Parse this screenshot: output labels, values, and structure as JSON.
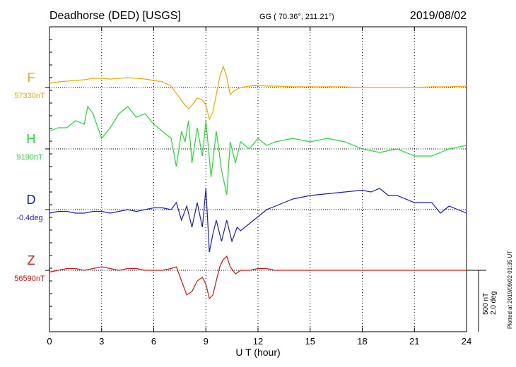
{
  "header": {
    "station": "Deadhorse (DED)  [USGS]",
    "coords": "GG ( 70.36°, 211.21°)",
    "date": "2019/08/02"
  },
  "footer": {
    "plotted": "Plotted at 2019/09/02 01:35 UT"
  },
  "scale": {
    "nt": "500 nT",
    "deg": "2.0 deg"
  },
  "chart_data": {
    "type": "line",
    "xlabel": "U T (hour)",
    "xlim": [
      0,
      24
    ],
    "xticks": [
      0,
      3,
      6,
      9,
      12,
      15,
      18,
      21,
      24
    ],
    "grid": true,
    "series": [
      {
        "name": "F",
        "baseline_label": "57330nT",
        "color": "#f0a800",
        "x": [
          0,
          0.5,
          1,
          1.5,
          2,
          2.5,
          3,
          3.5,
          4,
          4.5,
          5,
          5.5,
          6,
          6.5,
          7,
          7.2,
          7.5,
          7.8,
          8,
          8.2,
          8.5,
          8.8,
          9,
          9.2,
          9.4,
          9.6,
          9.8,
          10,
          10.2,
          10.4,
          10.6,
          11,
          11.5,
          12,
          12.5,
          13,
          14,
          15,
          16,
          17,
          18,
          19,
          20,
          21,
          22,
          23,
          24
        ],
        "values": [
          0.012,
          0.016,
          0.018,
          0.02,
          0.022,
          0.026,
          0.026,
          0.024,
          0.026,
          0.028,
          0.026,
          0.024,
          0.02,
          0.016,
          0.004,
          -0.01,
          -0.03,
          -0.05,
          -0.06,
          -0.05,
          -0.03,
          -0.035,
          -0.05,
          -0.09,
          -0.07,
          -0.02,
          0.03,
          0.06,
          0.03,
          -0.02,
          -0.01,
          0.0,
          0.004,
          0.006,
          0.004,
          0.004,
          0.002,
          0.002,
          0.002,
          0.002,
          0.0,
          0.0,
          0.0,
          0.0,
          0.002,
          0.002,
          0.004
        ]
      },
      {
        "name": "H",
        "baseline_label": "9190nT",
        "color": "#22dd33",
        "x": [
          0,
          0.5,
          1,
          1.5,
          2,
          2.2,
          2.5,
          3,
          3.5,
          4,
          4.5,
          5,
          5.5,
          6,
          6.5,
          7,
          7.3,
          7.6,
          7.8,
          8,
          8.2,
          8.5,
          8.8,
          9,
          9.3,
          9.6,
          9.9,
          10.2,
          10.4,
          10.7,
          11,
          11.5,
          12,
          12.5,
          13,
          14,
          15,
          16,
          17,
          18,
          19,
          20,
          21,
          22,
          23,
          24
        ],
        "values": [
          0.05,
          0.06,
          0.06,
          0.08,
          0.07,
          0.12,
          0.1,
          0.03,
          0.06,
          0.1,
          0.12,
          0.09,
          0.1,
          0.07,
          0.05,
          0.03,
          -0.05,
          0.05,
          0.02,
          0.08,
          -0.04,
          0.06,
          -0.02,
          0.08,
          -0.08,
          0.05,
          -0.06,
          -0.13,
          0.02,
          -0.04,
          0.02,
          0.0,
          0.03,
          0.01,
          0.02,
          0.03,
          0.02,
          0.03,
          0.02,
          0.0,
          -0.01,
          0.0,
          -0.02,
          -0.02,
          0.0,
          0.01
        ]
      },
      {
        "name": "D",
        "baseline_label": "-0.4deg",
        "color": "#1a1acc",
        "x": [
          0,
          0.5,
          1,
          1.5,
          2,
          2.5,
          3,
          3.5,
          4,
          4.5,
          5,
          5.5,
          6,
          6.5,
          7,
          7.3,
          7.6,
          7.9,
          8.2,
          8.5,
          8.8,
          9,
          9.2,
          9.4,
          9.6,
          9.9,
          10.2,
          10.5,
          10.8,
          11,
          11.5,
          12,
          12.5,
          13,
          13.5,
          14,
          15,
          16,
          17,
          18,
          18.5,
          19,
          19.5,
          20,
          21,
          22,
          22.5,
          23,
          23.5,
          24
        ],
        "values": [
          -0.01,
          -0.005,
          -0.005,
          -0.01,
          -0.01,
          -0.005,
          -0.005,
          -0.01,
          -0.005,
          -0.0,
          -0.005,
          0.0,
          0.005,
          0.005,
          0.0,
          0.02,
          -0.03,
          0.01,
          -0.05,
          0.02,
          -0.05,
          0.06,
          -0.12,
          -0.07,
          -0.03,
          -0.09,
          -0.03,
          -0.09,
          -0.05,
          -0.06,
          -0.04,
          -0.02,
          0.0,
          0.01,
          0.02,
          0.03,
          0.04,
          0.045,
          0.05,
          0.055,
          0.05,
          0.06,
          0.04,
          0.04,
          0.02,
          0.02,
          -0.01,
          0.01,
          0.0,
          -0.01
        ]
      },
      {
        "name": "Z",
        "baseline_label": "56590nT",
        "color": "#dd1111",
        "x": [
          0,
          0.5,
          1,
          1.5,
          2,
          2.5,
          3,
          3.5,
          4,
          4.5,
          5,
          5.5,
          6,
          6.5,
          7,
          7.3,
          7.6,
          7.9,
          8.2,
          8.5,
          8.8,
          9,
          9.2,
          9.4,
          9.6,
          9.8,
          10,
          10.2,
          10.4,
          10.7,
          11,
          11.5,
          12,
          12.5,
          13,
          14,
          15,
          16,
          17,
          18,
          19,
          20,
          21,
          22,
          23,
          24
        ],
        "values": [
          -0.005,
          0.0,
          0.005,
          0.005,
          0.0,
          0.005,
          0.01,
          0.005,
          0.0,
          0.005,
          0.005,
          0.0,
          0.0,
          0.0,
          0.005,
          0.01,
          -0.03,
          -0.07,
          -0.06,
          -0.03,
          -0.02,
          -0.04,
          -0.08,
          -0.07,
          -0.03,
          0.01,
          0.03,
          0.04,
          0.01,
          -0.01,
          0.0,
          0.0,
          0.005,
          0.005,
          0.0,
          0.0,
          0.0,
          0.0,
          0.0,
          0.0,
          0.0,
          0.0,
          0.0,
          0.0,
          0.0,
          0.0
        ]
      }
    ]
  }
}
